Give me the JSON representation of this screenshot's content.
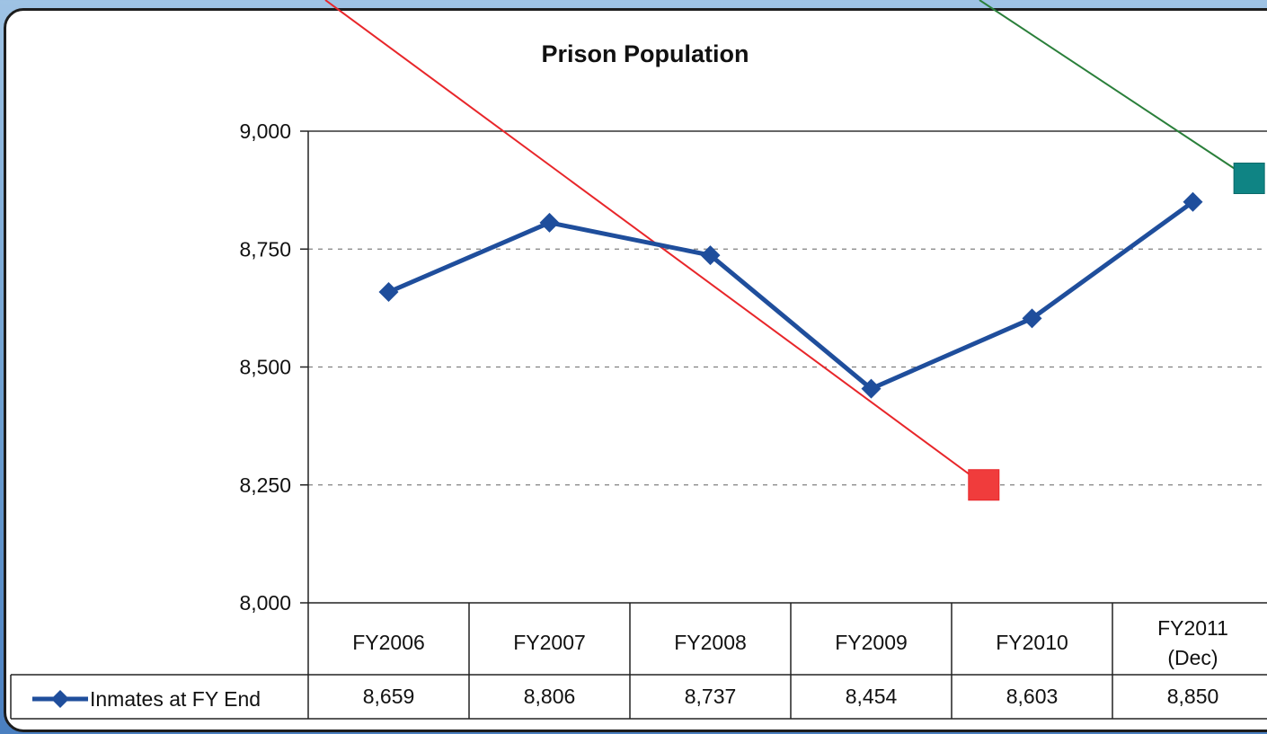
{
  "chart_data": {
    "type": "line",
    "title": "Prison Population",
    "categories": [
      "FY2006",
      "FY2007",
      "FY2008",
      "FY2009",
      "FY2010",
      "FY2011 (Dec)"
    ],
    "category_lines": [
      [
        "FY2006"
      ],
      [
        "FY2007"
      ],
      [
        "FY2008"
      ],
      [
        "FY2009"
      ],
      [
        "FY2010"
      ],
      [
        "FY2011",
        "(Dec)"
      ]
    ],
    "series": [
      {
        "name": "Inmates at FY End",
        "values": [
          8659,
          8806,
          8737,
          8454,
          8603,
          8850
        ],
        "value_labels": [
          "8,659",
          "8,806",
          "8,737",
          "8,454",
          "8,603",
          "8,850"
        ],
        "color": "#1f4e9c",
        "marker": "diamond"
      }
    ],
    "ylim": [
      8000,
      9000
    ],
    "yticks": [
      8000,
      8250,
      8500,
      8750,
      9000
    ],
    "ytick_labels": [
      "8,000",
      "8,250",
      "8,500",
      "8,750",
      "9,000"
    ],
    "grid": "dashed horizontal",
    "data_table": true,
    "annotations": [
      {
        "type": "square-marker",
        "color": "#f03c3c",
        "x_index": 4.2,
        "y": 8250
      },
      {
        "type": "square-marker",
        "color": "#0f8484",
        "x_index": 5.85,
        "y": 8900
      }
    ]
  },
  "background_color": "#6d9fd0"
}
